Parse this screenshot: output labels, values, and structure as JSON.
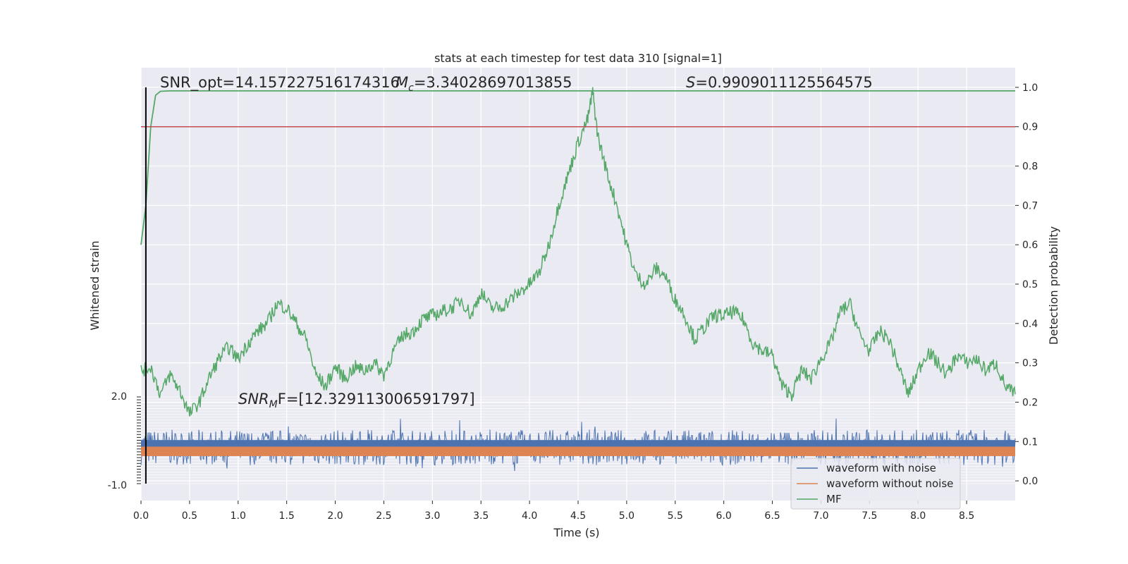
{
  "chart_data": {
    "type": "line",
    "title": "stats at each timestep for test data 310 [signal=1]",
    "xlabel": "Time (s)",
    "ylabel_left": "Whitened strain",
    "ylabel_right": "Detection probability",
    "xlim": [
      0.0,
      9.0
    ],
    "ylim_right": [
      -0.05,
      1.05
    ],
    "ylim_left": [
      -1.0,
      2.0
    ],
    "x_ticks": [
      "0.0",
      "0.5",
      "1.0",
      "1.5",
      "2.0",
      "2.5",
      "3.0",
      "3.5",
      "4.0",
      "4.5",
      "5.0",
      "5.5",
      "6.0",
      "6.5",
      "7.0",
      "7.5",
      "8.0",
      "8.5"
    ],
    "y_right_ticks": [
      "0.0",
      "0.1",
      "0.2",
      "0.3",
      "0.4",
      "0.5",
      "0.6",
      "0.7",
      "0.8",
      "0.9",
      "1.0"
    ],
    "y_left_tick_top": "2.0",
    "y_left_tick_bottom": "-1.0",
    "grid": true,
    "threshold": 0.9,
    "marker_x": 0.05,
    "annotations": {
      "snr_opt": "SNR_opt=14.157227516174316",
      "mc_prefix": "M",
      "mc_sub": "c",
      "mc_value": "=3.34028697013855",
      "s_prefix": "S",
      "s_value": "=0.9909011125564575",
      "snr_mf_prefix": "SNR",
      "snr_mf_sub": "M",
      "snr_mf_value": "F=[12.329113006591797]"
    },
    "legend": {
      "placement": "lower-right",
      "entries": [
        "waveform with noise",
        "waveform without noise",
        "MF"
      ]
    },
    "series": [
      {
        "name": "waveform with noise",
        "color": "#4c72b0",
        "description_values": {
          "center": 0.085,
          "amplitude": 0.075
        }
      },
      {
        "name": "waveform without noise",
        "color": "#dd8452",
        "description_values": {
          "center": 0.075,
          "amplitude": 0.012
        }
      },
      {
        "name": "MF",
        "color": "#55a868",
        "x": [
          0.0,
          0.05,
          0.1,
          0.15,
          0.2,
          0.3,
          0.5,
          1.0,
          2.0,
          3.0,
          4.0,
          5.0,
          6.0,
          7.0,
          8.0,
          9.0
        ],
        "y": [
          0.6,
          0.7,
          0.9,
          0.98,
          0.99,
          0.991,
          0.991,
          0.991,
          0.991,
          0.991,
          0.991,
          0.991,
          0.991,
          0.991,
          0.991,
          0.991
        ]
      },
      {
        "name": "detection probability",
        "color": "#55a868",
        "x": [
          0.0,
          0.1,
          0.2,
          0.3,
          0.4,
          0.5,
          0.6,
          0.7,
          0.8,
          0.9,
          1.0,
          1.1,
          1.2,
          1.3,
          1.4,
          1.5,
          1.6,
          1.7,
          1.8,
          1.9,
          2.0,
          2.1,
          2.2,
          2.3,
          2.4,
          2.5,
          2.6,
          2.7,
          2.8,
          2.9,
          3.0,
          3.1,
          3.2,
          3.3,
          3.4,
          3.5,
          3.6,
          3.7,
          3.8,
          3.9,
          4.0,
          4.1,
          4.2,
          4.3,
          4.4,
          4.5,
          4.6,
          4.65,
          4.7,
          4.8,
          4.9,
          5.0,
          5.1,
          5.2,
          5.3,
          5.4,
          5.5,
          5.6,
          5.7,
          5.8,
          5.9,
          6.0,
          6.1,
          6.2,
          6.3,
          6.4,
          6.5,
          6.6,
          6.7,
          6.8,
          6.9,
          7.0,
          7.1,
          7.2,
          7.3,
          7.4,
          7.5,
          7.6,
          7.7,
          7.8,
          7.9,
          8.0,
          8.1,
          8.2,
          8.3,
          8.4,
          8.5,
          8.6,
          8.7,
          8.8,
          8.9,
          9.0
        ],
        "y": [
          0.28,
          0.29,
          0.22,
          0.27,
          0.23,
          0.17,
          0.2,
          0.26,
          0.31,
          0.34,
          0.31,
          0.35,
          0.38,
          0.4,
          0.45,
          0.44,
          0.4,
          0.36,
          0.27,
          0.24,
          0.29,
          0.26,
          0.29,
          0.28,
          0.3,
          0.27,
          0.33,
          0.37,
          0.38,
          0.41,
          0.42,
          0.43,
          0.44,
          0.46,
          0.42,
          0.48,
          0.44,
          0.44,
          0.46,
          0.48,
          0.5,
          0.53,
          0.6,
          0.7,
          0.78,
          0.86,
          0.92,
          0.99,
          0.88,
          0.78,
          0.7,
          0.6,
          0.52,
          0.5,
          0.54,
          0.52,
          0.46,
          0.42,
          0.36,
          0.39,
          0.42,
          0.42,
          0.43,
          0.41,
          0.35,
          0.33,
          0.32,
          0.24,
          0.22,
          0.28,
          0.26,
          0.31,
          0.35,
          0.43,
          0.45,
          0.37,
          0.33,
          0.38,
          0.36,
          0.29,
          0.22,
          0.28,
          0.33,
          0.3,
          0.27,
          0.32,
          0.3,
          0.31,
          0.28,
          0.3,
          0.24,
          0.22
        ]
      }
    ]
  }
}
